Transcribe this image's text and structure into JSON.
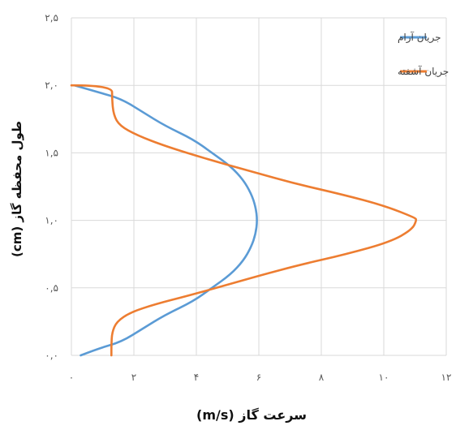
{
  "chart_data": {
    "type": "line",
    "title": "",
    "xlabel": "سرعت گاز (m/s)",
    "ylabel": "طول محفظه گاز (cm)",
    "xlim": [
      0,
      12
    ],
    "ylim": [
      0,
      2.5
    ],
    "x_ticks": [
      0,
      2,
      4,
      6,
      8,
      10,
      12
    ],
    "y_ticks": [
      0,
      0.5,
      1.0,
      1.5,
      2.0,
      2.5
    ],
    "x_tick_labels": [
      "۰",
      "۲",
      "۴",
      "۶",
      "۸",
      "۱۰",
      "۱۲"
    ],
    "y_tick_labels": [
      "۰,۰",
      "۰,۵",
      "۱,۰",
      "۱,۵",
      "۲,۰",
      "۲,۵"
    ],
    "grid": true,
    "legend_position": "top-right",
    "series": [
      {
        "name": "جریان آرام",
        "color": "#5B9BD5",
        "points": [
          [
            0.3,
            0.0
          ],
          [
            0.85,
            0.05
          ],
          [
            1.6,
            0.1
          ],
          [
            2.3,
            0.2
          ],
          [
            3.0,
            0.3
          ],
          [
            3.9,
            0.4
          ],
          [
            4.5,
            0.5
          ],
          [
            5.1,
            0.6
          ],
          [
            5.5,
            0.7
          ],
          [
            5.75,
            0.8
          ],
          [
            5.9,
            0.9
          ],
          [
            5.95,
            1.0
          ],
          [
            5.9,
            1.1
          ],
          [
            5.75,
            1.2
          ],
          [
            5.5,
            1.3
          ],
          [
            5.1,
            1.4
          ],
          [
            4.5,
            1.5
          ],
          [
            3.9,
            1.6
          ],
          [
            3.0,
            1.7
          ],
          [
            2.3,
            1.8
          ],
          [
            1.6,
            1.9
          ],
          [
            0.85,
            1.95
          ],
          [
            0.1,
            2.0
          ]
        ]
      },
      {
        "name": "جریان آشفته",
        "color": "#ED7D31",
        "points": [
          [
            0.0,
            2.0
          ],
          [
            1.3,
            2.0
          ],
          [
            1.3,
            1.9
          ],
          [
            1.35,
            1.78
          ],
          [
            1.55,
            1.7
          ],
          [
            2.1,
            1.63
          ],
          [
            3.0,
            1.55
          ],
          [
            4.4,
            1.45
          ],
          [
            5.8,
            1.36
          ],
          [
            7.2,
            1.27
          ],
          [
            8.7,
            1.19
          ],
          [
            10.0,
            1.11
          ],
          [
            11.0,
            1.02
          ],
          [
            11.05,
            1.0
          ],
          [
            10.9,
            0.93
          ],
          [
            10.2,
            0.84
          ],
          [
            8.8,
            0.75
          ],
          [
            7.3,
            0.67
          ],
          [
            6.0,
            0.59
          ],
          [
            4.8,
            0.51
          ],
          [
            3.7,
            0.44
          ],
          [
            2.7,
            0.38
          ],
          [
            1.9,
            0.32
          ],
          [
            1.45,
            0.25
          ],
          [
            1.3,
            0.17
          ],
          [
            1.28,
            0.08
          ],
          [
            1.28,
            0.0
          ]
        ]
      }
    ]
  }
}
